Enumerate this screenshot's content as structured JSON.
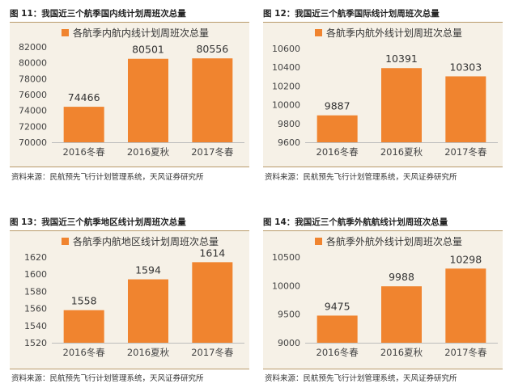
{
  "accent_color": "#f0842f",
  "chart_data": [
    {
      "type": "bar",
      "figure_label": "图 11：我国近三个航季国内线计划周班次总量",
      "legend": "各航季内航内线计划周班次总量",
      "categories": [
        "2016冬春",
        "2016夏秋",
        "2017冬春"
      ],
      "values": [
        74466,
        80501,
        80556
      ],
      "value_labels": [
        "74466",
        "80501",
        "80556"
      ],
      "ylim": [
        70000,
        82000
      ],
      "yticks": [
        70000,
        72000,
        74000,
        76000,
        78000,
        80000,
        82000
      ],
      "ytick_labels": [
        "70000",
        "72000",
        "74000",
        "76000",
        "78000",
        "80000",
        "82000"
      ],
      "source": "资料来源：民航预先飞行计划管理系统，天风证券研究所"
    },
    {
      "type": "bar",
      "figure_label": "图 12：我国近三个航季国际线计划周班次总量",
      "legend": "各航季内航外线计划周班次总量",
      "categories": [
        "2016冬春",
        "2016夏秋",
        "2017冬春"
      ],
      "values": [
        9887,
        10391,
        10303
      ],
      "value_labels": [
        "9887",
        "10391",
        "10303"
      ],
      "ylim": [
        9600,
        10600
      ],
      "yticks": [
        9600,
        9800,
        10000,
        10200,
        10400,
        10600
      ],
      "ytick_labels": [
        "9600",
        "9800",
        "10000",
        "10200",
        "10400",
        "10600"
      ],
      "source": "资料来源：民航预先飞行计划管理系统，天风证券研究所"
    },
    {
      "type": "bar",
      "figure_label": "图 13：我国近三个航季地区线计划周班次总量",
      "legend": "各航季内航地区线计划周班次总量",
      "categories": [
        "2016冬春",
        "2016夏秋",
        "2017冬春"
      ],
      "values": [
        1558,
        1594,
        1614
      ],
      "value_labels": [
        "1558",
        "1594",
        "1614"
      ],
      "ylim": [
        1520,
        1620
      ],
      "yticks": [
        1520,
        1540,
        1560,
        1580,
        1600,
        1620
      ],
      "ytick_labels": [
        "1520",
        "1540",
        "1560",
        "1580",
        "1600",
        "1620"
      ],
      "source": "资料来源：民航预先飞行计划管理系统，天风证券研究所"
    },
    {
      "type": "bar",
      "figure_label": "图 14：我国近三个航季外航航线计划周班次总量",
      "legend": "各航季外航外线计划周班次总量",
      "categories": [
        "2016冬春",
        "2016夏秋",
        "2017冬春"
      ],
      "values": [
        9475,
        9988,
        10298
      ],
      "value_labels": [
        "9475",
        "9988",
        "10298"
      ],
      "ylim": [
        9000,
        10500
      ],
      "yticks": [
        9000,
        9500,
        10000,
        10500
      ],
      "ytick_labels": [
        "9000",
        "9500",
        "10000",
        "10500"
      ],
      "source": "资料来源：民航预先飞行计划管理系统，天风证券研究所"
    }
  ]
}
